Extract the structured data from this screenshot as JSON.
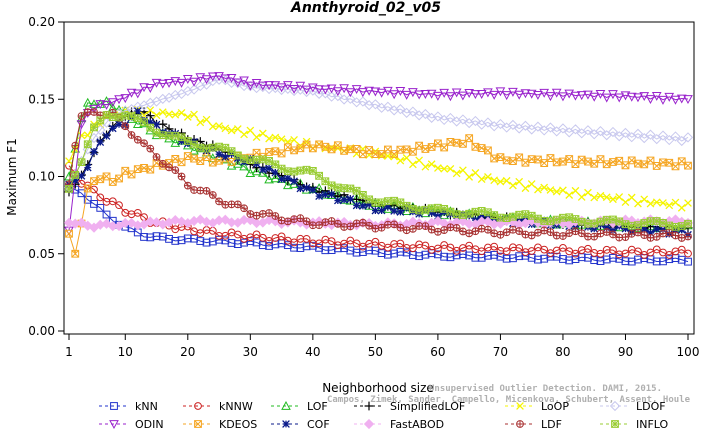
{
  "chart_data": {
    "type": "line",
    "title": "Annthyroid_02_v05",
    "xlabel": "Neighborhood size",
    "ylabel": "Maximum F1",
    "xlim": [
      1,
      100
    ],
    "ylim": [
      0,
      0.2
    ],
    "xticks": [
      1,
      10,
      20,
      30,
      40,
      50,
      60,
      70,
      80,
      90,
      100
    ],
    "yticks": [
      0.0,
      0.05,
      0.1,
      0.15,
      0.2
    ],
    "ytick_labels": [
      "0.00",
      "0.05",
      "0.10",
      "0.15",
      "0.20"
    ],
    "grid": false,
    "legend_placement": "bottom",
    "series": [
      {
        "name": "kNN",
        "color": "#2233cc",
        "marker": "square",
        "points": [
          [
            1,
            0.093
          ],
          [
            3,
            0.09
          ],
          [
            5,
            0.082
          ],
          [
            7,
            0.075
          ],
          [
            10,
            0.067
          ],
          [
            13,
            0.062
          ],
          [
            16,
            0.06
          ],
          [
            20,
            0.059
          ],
          [
            30,
            0.057
          ],
          [
            40,
            0.054
          ],
          [
            50,
            0.051
          ],
          [
            60,
            0.049
          ],
          [
            70,
            0.048
          ],
          [
            80,
            0.047
          ],
          [
            90,
            0.046
          ],
          [
            100,
            0.046
          ]
        ]
      },
      {
        "name": "kNNW",
        "color": "#cc2222",
        "marker": "circle",
        "points": [
          [
            1,
            0.107
          ],
          [
            3,
            0.097
          ],
          [
            5,
            0.09
          ],
          [
            7,
            0.085
          ],
          [
            10,
            0.078
          ],
          [
            15,
            0.07
          ],
          [
            20,
            0.066
          ],
          [
            25,
            0.063
          ],
          [
            30,
            0.061
          ],
          [
            40,
            0.058
          ],
          [
            50,
            0.056
          ],
          [
            60,
            0.054
          ],
          [
            70,
            0.053
          ],
          [
            80,
            0.052
          ],
          [
            90,
            0.051
          ],
          [
            100,
            0.051
          ]
        ]
      },
      {
        "name": "LOF",
        "color": "#22bb22",
        "marker": "triangle-up",
        "points": [
          [
            1,
            0.1
          ],
          [
            2,
            0.118
          ],
          [
            3,
            0.138
          ],
          [
            4,
            0.146
          ],
          [
            5,
            0.148
          ],
          [
            7,
            0.147
          ],
          [
            9,
            0.144
          ],
          [
            12,
            0.135
          ],
          [
            15,
            0.128
          ],
          [
            20,
            0.12
          ],
          [
            25,
            0.112
          ],
          [
            30,
            0.104
          ],
          [
            35,
            0.097
          ],
          [
            40,
            0.092
          ],
          [
            45,
            0.086
          ],
          [
            50,
            0.081
          ],
          [
            55,
            0.079
          ],
          [
            60,
            0.077
          ],
          [
            70,
            0.073
          ],
          [
            80,
            0.07
          ],
          [
            90,
            0.068
          ],
          [
            100,
            0.068
          ]
        ]
      },
      {
        "name": "SimplifiedLOF",
        "color": "#000000",
        "marker": "plus",
        "points": [
          [
            1,
            0.09
          ],
          [
            3,
            0.1
          ],
          [
            5,
            0.116
          ],
          [
            7,
            0.128
          ],
          [
            10,
            0.14
          ],
          [
            13,
            0.142
          ],
          [
            15,
            0.135
          ],
          [
            20,
            0.125
          ],
          [
            25,
            0.118
          ],
          [
            30,
            0.108
          ],
          [
            35,
            0.1
          ],
          [
            40,
            0.092
          ],
          [
            45,
            0.087
          ],
          [
            50,
            0.082
          ],
          [
            55,
            0.08
          ],
          [
            60,
            0.077
          ],
          [
            70,
            0.073
          ],
          [
            80,
            0.07
          ],
          [
            90,
            0.068
          ],
          [
            100,
            0.066
          ]
        ]
      },
      {
        "name": "LoOP",
        "color": "#f5f500",
        "marker": "x",
        "points": [
          [
            1,
            0.11
          ],
          [
            3,
            0.125
          ],
          [
            5,
            0.132
          ],
          [
            7,
            0.138
          ],
          [
            10,
            0.142
          ],
          [
            15,
            0.141
          ],
          [
            20,
            0.14
          ],
          [
            25,
            0.132
          ],
          [
            30,
            0.128
          ],
          [
            40,
            0.12
          ],
          [
            50,
            0.115
          ],
          [
            60,
            0.106
          ],
          [
            70,
            0.097
          ],
          [
            80,
            0.09
          ],
          [
            90,
            0.085
          ],
          [
            100,
            0.081
          ]
        ]
      },
      {
        "name": "LDOF",
        "color": "#c8c8ee",
        "marker": "diamond",
        "points": [
          [
            1,
            0.093
          ],
          [
            3,
            0.11
          ],
          [
            5,
            0.125
          ],
          [
            8,
            0.14
          ],
          [
            12,
            0.145
          ],
          [
            16,
            0.15
          ],
          [
            20,
            0.155
          ],
          [
            25,
            0.163
          ],
          [
            30,
            0.158
          ],
          [
            40,
            0.155
          ],
          [
            50,
            0.146
          ],
          [
            60,
            0.138
          ],
          [
            70,
            0.133
          ],
          [
            80,
            0.13
          ],
          [
            90,
            0.127
          ],
          [
            100,
            0.124
          ]
        ]
      },
      {
        "name": "ODIN",
        "color": "#9922cc",
        "marker": "triangle-down",
        "points": [
          [
            1,
            0.065
          ],
          [
            2,
            0.1
          ],
          [
            3,
            0.135
          ],
          [
            5,
            0.145
          ],
          [
            8,
            0.148
          ],
          [
            12,
            0.155
          ],
          [
            15,
            0.16
          ],
          [
            20,
            0.162
          ],
          [
            25,
            0.165
          ],
          [
            30,
            0.16
          ],
          [
            40,
            0.157
          ],
          [
            50,
            0.155
          ],
          [
            60,
            0.153
          ],
          [
            70,
            0.154
          ],
          [
            80,
            0.153
          ],
          [
            90,
            0.152
          ],
          [
            100,
            0.15
          ]
        ]
      },
      {
        "name": "KDEOS",
        "color": "#f5a623",
        "marker": "square-x",
        "points": [
          [
            1,
            0.063
          ],
          [
            2,
            0.05
          ],
          [
            4,
            0.092
          ],
          [
            6,
            0.1
          ],
          [
            8,
            0.097
          ],
          [
            10,
            0.102
          ],
          [
            15,
            0.107
          ],
          [
            20,
            0.112
          ],
          [
            25,
            0.11
          ],
          [
            30,
            0.113
          ],
          [
            40,
            0.12
          ],
          [
            45,
            0.118
          ],
          [
            50,
            0.115
          ],
          [
            55,
            0.117
          ],
          [
            60,
            0.12
          ],
          [
            65,
            0.123
          ],
          [
            70,
            0.111
          ],
          [
            80,
            0.11
          ],
          [
            90,
            0.109
          ],
          [
            100,
            0.108
          ]
        ]
      },
      {
        "name": "COF",
        "color": "#0a1a8a",
        "marker": "star",
        "points": [
          [
            1,
            0.095
          ],
          [
            3,
            0.1
          ],
          [
            5,
            0.115
          ],
          [
            7,
            0.128
          ],
          [
            10,
            0.135
          ],
          [
            12,
            0.141
          ],
          [
            15,
            0.132
          ],
          [
            20,
            0.122
          ],
          [
            25,
            0.115
          ],
          [
            30,
            0.11
          ],
          [
            35,
            0.1
          ],
          [
            40,
            0.09
          ],
          [
            45,
            0.085
          ],
          [
            50,
            0.079
          ],
          [
            55,
            0.078
          ],
          [
            60,
            0.076
          ],
          [
            70,
            0.072
          ],
          [
            80,
            0.069
          ],
          [
            90,
            0.066
          ],
          [
            100,
            0.064
          ]
        ]
      },
      {
        "name": "FastABOD",
        "color": "#f0b0f0",
        "marker": "diamond-filled",
        "points": [
          [
            1,
            0.07
          ],
          [
            5,
            0.068
          ],
          [
            10,
            0.069
          ],
          [
            15,
            0.07
          ],
          [
            20,
            0.071
          ],
          [
            30,
            0.071
          ],
          [
            40,
            0.07
          ],
          [
            50,
            0.069
          ],
          [
            60,
            0.07
          ],
          [
            70,
            0.07
          ],
          [
            80,
            0.07
          ],
          [
            90,
            0.071
          ],
          [
            100,
            0.071
          ]
        ]
      },
      {
        "name": "LDF",
        "color": "#a83232",
        "marker": "circle-plus",
        "points": [
          [
            1,
            0.095
          ],
          [
            2,
            0.12
          ],
          [
            3,
            0.138
          ],
          [
            5,
            0.142
          ],
          [
            8,
            0.14
          ],
          [
            10,
            0.133
          ],
          [
            13,
            0.12
          ],
          [
            16,
            0.11
          ],
          [
            20,
            0.095
          ],
          [
            25,
            0.085
          ],
          [
            30,
            0.077
          ],
          [
            35,
            0.073
          ],
          [
            40,
            0.07
          ],
          [
            50,
            0.068
          ],
          [
            60,
            0.066
          ],
          [
            70,
            0.064
          ],
          [
            80,
            0.063
          ],
          [
            90,
            0.062
          ],
          [
            100,
            0.062
          ]
        ]
      },
      {
        "name": "INFLO",
        "color": "#99cc33",
        "marker": "square-star",
        "points": [
          [
            1,
            0.092
          ],
          [
            3,
            0.11
          ],
          [
            5,
            0.13
          ],
          [
            7,
            0.14
          ],
          [
            10,
            0.14
          ],
          [
            15,
            0.13
          ],
          [
            20,
            0.122
          ],
          [
            25,
            0.118
          ],
          [
            30,
            0.112
          ],
          [
            35,
            0.106
          ],
          [
            40,
            0.102
          ],
          [
            45,
            0.092
          ],
          [
            50,
            0.085
          ],
          [
            55,
            0.081
          ],
          [
            60,
            0.078
          ],
          [
            70,
            0.075
          ],
          [
            80,
            0.072
          ],
          [
            90,
            0.07
          ],
          [
            100,
            0.069
          ]
        ]
      }
    ]
  },
  "watermark": {
    "line1": "Unsupervised Outlier Detection. DAMI, 2015.",
    "line2": "Campos, Zimek, Sander, Campello, Micenkova, Schubert, Assent, Houle"
  }
}
